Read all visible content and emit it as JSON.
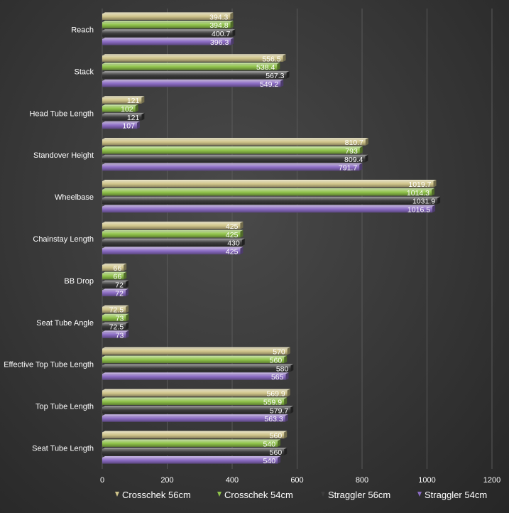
{
  "chart_data": {
    "type": "bar",
    "orientation": "horizontal",
    "title": "",
    "xlabel": "",
    "ylabel": "",
    "xlim": [
      0,
      1200
    ],
    "x_ticks": [
      0,
      200,
      400,
      600,
      800,
      1000,
      1200
    ],
    "grid": true,
    "legend_position": "bottom",
    "categories": [
      "Reach",
      "Stack",
      "Head Tube Length",
      "Standover Height",
      "Wheelbase",
      "Chainstay Length",
      "BB Drop",
      "Seat Tube Angle",
      "Effective Top Tube Length",
      "Top Tube Length",
      "Seat Tube Length"
    ],
    "series": [
      {
        "name": "Crosschek 56cm",
        "color": "#cfc48a",
        "label_color": "#ffffff",
        "values": [
          394.3,
          556.5,
          121,
          810.7,
          1019.7,
          425,
          66,
          72.5,
          570,
          569.9,
          560
        ],
        "labels": [
          "394.3",
          "556.5",
          "121",
          "810.7",
          "1019.7",
          "425",
          "66",
          "72.5",
          "570",
          "569.9",
          "560"
        ]
      },
      {
        "name": "Crosschek 54cm",
        "color": "#8fc24a",
        "label_color": "#ffffff",
        "values": [
          394.8,
          538.4,
          102,
          793,
          1014.3,
          425,
          66,
          73,
          560,
          559.9,
          540
        ],
        "labels": [
          "394.8",
          "538.4",
          "102",
          "793",
          "1014.3",
          "425",
          "66",
          "73",
          "560",
          "559.9",
          "540"
        ]
      },
      {
        "name": "Straggler 56cm",
        "color": "#3c3c3c",
        "label_color": "#ffffff",
        "values": [
          400.7,
          567.3,
          121,
          809.4,
          1031.9,
          430,
          72,
          72.5,
          580,
          579.7,
          560
        ],
        "labels": [
          "400.7",
          "567.3",
          "121",
          "809.4",
          "1031.9",
          "430",
          "72",
          "72.5",
          "580",
          "579.7",
          "560"
        ]
      },
      {
        "name": "Straggler 54cm",
        "color": "#8a6bc2",
        "label_color": "#ffffff",
        "values": [
          396.3,
          549.2,
          107,
          791.7,
          1016.5,
          425,
          72,
          73,
          565,
          563.3,
          540
        ],
        "labels": [
          "396.3",
          "549.2",
          "107",
          "791.7",
          "1016.5",
          "425",
          "72",
          "73",
          "565",
          "563.3",
          "540"
        ]
      }
    ]
  }
}
